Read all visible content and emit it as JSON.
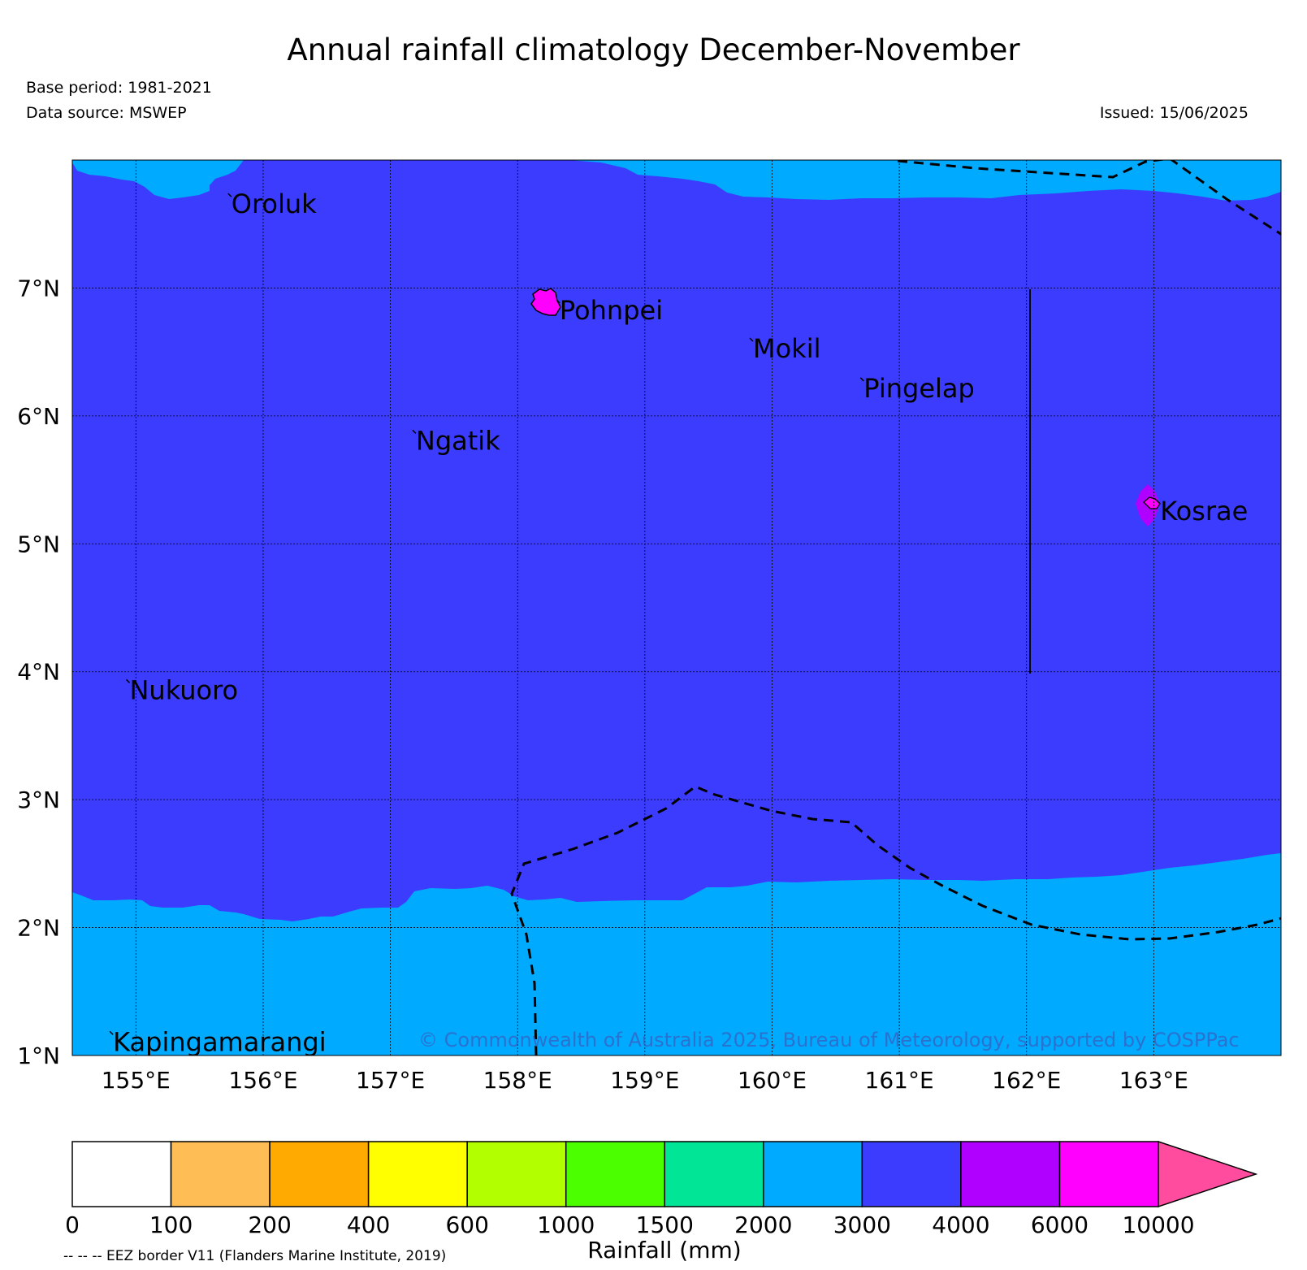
{
  "title": "Annual rainfall climatology December-November",
  "base_period": "Base period: 1981-2021",
  "data_source": "Data source: MSWEP",
  "issued": "Issued: 15/06/2025",
  "credit": "© Commonwealth of Australia 2025, Bureau of Meteorology, supported by COSPPac",
  "eez_note": "-- -- -- EEZ border V11 (Flanders Marine Institute, 2019)",
  "lon_labels": [
    "155°E",
    "156°E",
    "157°E",
    "158°E",
    "159°E",
    "160°E",
    "161°E",
    "162°E",
    "163°E"
  ],
  "lat_labels": [
    "1°N",
    "2°N",
    "3°N",
    "4°N",
    "5°N",
    "6°N",
    "7°N"
  ],
  "lon_values": [
    155,
    156,
    157,
    158,
    159,
    160,
    161,
    162,
    163
  ],
  "lat_values": [
    1,
    2,
    3,
    4,
    5,
    6,
    7
  ],
  "places": [
    {
      "name": "Oroluk",
      "lon": 155.75,
      "lat": 7.65
    },
    {
      "name": "Pohnpei",
      "lon": 158.33,
      "lat": 6.82
    },
    {
      "name": "Mokil",
      "lon": 159.85,
      "lat": 6.52
    },
    {
      "name": "Pingelap",
      "lon": 160.72,
      "lat": 6.21
    },
    {
      "name": "Ngatik",
      "lon": 157.2,
      "lat": 5.8
    },
    {
      "name": "Kosrae",
      "lon": 163.05,
      "lat": 5.25
    },
    {
      "name": "Nukuoro",
      "lon": 154.95,
      "lat": 3.85
    },
    {
      "name": "Kapingamarangi",
      "lon": 154.82,
      "lat": 1.1
    }
  ],
  "colorbar": {
    "label": "Rainfall (mm)",
    "ticks": [
      "0",
      "100",
      "200",
      "400",
      "600",
      "1000",
      "1500",
      "2000",
      "3000",
      "4000",
      "6000",
      "10000"
    ],
    "colors": [
      "#ffffff",
      "#ffbe55",
      "#ffaa00",
      "#ffff00",
      "#b2ff00",
      "#4cff00",
      "#00e696",
      "#00aaff",
      "#3c3cff",
      "#b000ff",
      "#ff00ff"
    ],
    "extend_color": "#ff4c9e"
  },
  "map_colors": {
    "band_3000_4000": "#3c3cff",
    "band_2000_3000": "#00aaff",
    "band_4000_6000": "#b000ff",
    "band_6000_10000": "#ff00ff"
  }
}
